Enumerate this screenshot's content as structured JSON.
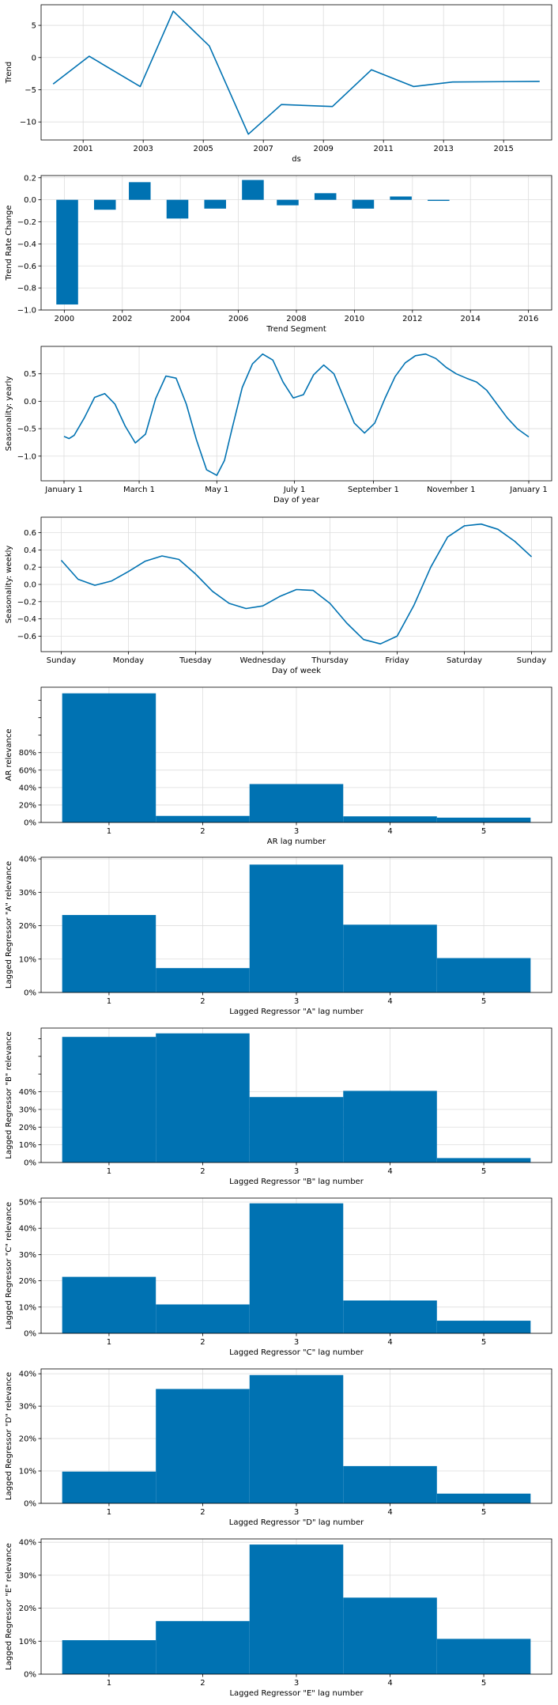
{
  "figure": {
    "color": "#0072b2",
    "grid_color": "#dddddd"
  },
  "chart_data": [
    {
      "type": "line",
      "xlabel": "ds",
      "ylabel": "Trend",
      "x_ticks": [
        "2001",
        "2003",
        "2005",
        "2007",
        "2009",
        "2011",
        "2013",
        "2015"
      ],
      "x_tick_values": [
        2001,
        2003,
        2005,
        2007,
        2009,
        2011,
        2013,
        2015
      ],
      "y_ticks": [
        "5",
        "0",
        "−5",
        "−10"
      ],
      "y_tick_values": [
        5,
        0,
        -5,
        -10
      ],
      "xlim": [
        1999.6,
        2016.6
      ],
      "ylim": [
        -12.8,
        8.2
      ],
      "grid": true,
      "series": [
        {
          "x": [
            2000.0,
            2001.2,
            2002.9,
            2004.0,
            2005.2,
            2006.5,
            2007.6,
            2009.3,
            2010.6,
            2012.0,
            2013.3,
            2016.2
          ],
          "values": [
            -4.1,
            0.2,
            -4.5,
            7.2,
            1.8,
            -11.9,
            -7.3,
            -7.6,
            -1.9,
            -4.5,
            -3.8,
            -3.7
          ]
        }
      ]
    },
    {
      "type": "bar",
      "xlabel": "Trend Segment",
      "ylabel": "Trend Rate Change",
      "x_ticks": [
        "2000",
        "2002",
        "2004",
        "2006",
        "2008",
        "2010",
        "2012",
        "2014",
        "2016"
      ],
      "x_tick_values": [
        2000,
        2002,
        2004,
        2006,
        2008,
        2010,
        2012,
        2014,
        2016
      ],
      "y_ticks": [
        "0.2",
        "0.0",
        "−0.2",
        "−0.4",
        "−0.6",
        "−0.8",
        "−1.0"
      ],
      "y_tick_values": [
        0.2,
        0.0,
        -0.2,
        -0.4,
        -0.6,
        -0.8,
        -1.0
      ],
      "xlim": [
        1999.2,
        2016.8
      ],
      "ylim": [
        -1.0,
        0.22
      ],
      "bar_width": 0.75,
      "grid": true,
      "x": [
        2000.1,
        2001.4,
        2002.6,
        2003.9,
        2005.2,
        2006.5,
        2007.7,
        2009.0,
        2010.3,
        2011.6,
        2012.9
      ],
      "values": [
        -0.95,
        -0.09,
        0.16,
        -0.17,
        -0.08,
        0.18,
        -0.05,
        0.06,
        -0.08,
        0.03,
        -0.01
      ]
    },
    {
      "type": "line",
      "xlabel": "Day of year",
      "ylabel": "Seasonality: yearly",
      "x_ticks": [
        "January 1",
        "March 1",
        "May 1",
        "July 1",
        "September 1",
        "November 1",
        "January 1"
      ],
      "x_tick_values": [
        0,
        59,
        120,
        181,
        243,
        304,
        365
      ],
      "y_ticks": [
        "0.5",
        "0.0",
        "−0.5",
        "−1.0"
      ],
      "y_tick_values": [
        0.5,
        0.0,
        -0.5,
        -1.0
      ],
      "xlim": [
        -18,
        383
      ],
      "ylim": [
        -1.45,
        1.0
      ],
      "grid": true,
      "series": [
        {
          "x": [
            0,
            4,
            8,
            16,
            24,
            32,
            40,
            48,
            56,
            64,
            72,
            80,
            88,
            96,
            104,
            112,
            120,
            126,
            132,
            140,
            148,
            156,
            164,
            172,
            180,
            188,
            196,
            204,
            212,
            220,
            228,
            236,
            244,
            252,
            260,
            268,
            276,
            284,
            292,
            300,
            308,
            316,
            324,
            332,
            340,
            348,
            356,
            365
          ],
          "values": [
            -0.64,
            -0.68,
            -0.62,
            -0.3,
            0.07,
            0.14,
            -0.05,
            -0.45,
            -0.76,
            -0.6,
            0.05,
            0.46,
            0.42,
            -0.05,
            -0.7,
            -1.25,
            -1.35,
            -1.08,
            -0.5,
            0.25,
            0.68,
            0.86,
            0.75,
            0.35,
            0.06,
            0.12,
            0.48,
            0.66,
            0.5,
            0.05,
            -0.4,
            -0.58,
            -0.4,
            0.05,
            0.45,
            0.7,
            0.83,
            0.86,
            0.78,
            0.62,
            0.5,
            0.42,
            0.35,
            0.2,
            -0.05,
            -0.3,
            -0.5,
            -0.65
          ]
        }
      ]
    },
    {
      "type": "line",
      "xlabel": "Day of week",
      "ylabel": "Seasonality: weekly",
      "x_ticks": [
        "Sunday",
        "Monday",
        "Tuesday",
        "Wednesday",
        "Thursday",
        "Friday",
        "Saturday",
        "Sunday"
      ],
      "x_tick_values": [
        0,
        1,
        2,
        3,
        4,
        5,
        6,
        7
      ],
      "y_ticks": [
        "0.6",
        "0.4",
        "0.2",
        "0.0",
        "−0.2",
        "−0.4",
        "−0.6"
      ],
      "y_tick_values": [
        0.6,
        0.4,
        0.2,
        0.0,
        -0.2,
        -0.4,
        -0.6
      ],
      "xlim": [
        -0.3,
        7.3
      ],
      "ylim": [
        -0.78,
        0.78
      ],
      "grid": true,
      "series": [
        {
          "x": [
            0,
            0.25,
            0.5,
            0.75,
            1.0,
            1.25,
            1.5,
            1.75,
            2.0,
            2.25,
            2.5,
            2.75,
            3.0,
            3.25,
            3.5,
            3.75,
            4.0,
            4.25,
            4.5,
            4.75,
            5.0,
            5.25,
            5.5,
            5.75,
            6.0,
            6.25,
            6.5,
            6.75,
            7.0
          ],
          "values": [
            0.28,
            0.06,
            -0.01,
            0.04,
            0.15,
            0.27,
            0.33,
            0.29,
            0.12,
            -0.08,
            -0.22,
            -0.28,
            -0.25,
            -0.14,
            -0.06,
            -0.07,
            -0.22,
            -0.45,
            -0.64,
            -0.69,
            -0.6,
            -0.24,
            0.2,
            0.55,
            0.68,
            0.7,
            0.64,
            0.5,
            0.32
          ]
        }
      ]
    },
    {
      "type": "bar",
      "xlabel": "AR lag number",
      "ylabel": "AR relevance",
      "categories": [
        "1",
        "2",
        "3",
        "4",
        "5"
      ],
      "values": [
        1.48,
        0.075,
        0.44,
        0.07,
        0.055
      ],
      "y_ticks": [
        "0%",
        "20%",
        "40%",
        "60%",
        "80%"
      ],
      "y_tick_values": [
        0,
        0.2,
        0.4,
        0.6,
        0.8
      ],
      "y_minor_ticks": [
        1.0,
        1.2,
        1.4
      ],
      "ylim": [
        0,
        1.55
      ],
      "grid": true
    },
    {
      "type": "bar",
      "xlabel": "Lagged Regressor \"A\" lag number",
      "ylabel": "Lagged Regressor \"A\" relevance",
      "categories": [
        "1",
        "2",
        "3",
        "4",
        "5"
      ],
      "values": [
        0.232,
        0.073,
        0.383,
        0.203,
        0.103
      ],
      "y_ticks": [
        "0%",
        "10%",
        "20%",
        "30%",
        "40%"
      ],
      "y_tick_values": [
        0,
        0.1,
        0.2,
        0.3,
        0.4
      ],
      "ylim": [
        0,
        0.405
      ],
      "grid": true
    },
    {
      "type": "bar",
      "xlabel": "Lagged Regressor \"B\" lag number",
      "ylabel": "Lagged Regressor \"B\" relevance",
      "categories": [
        "1",
        "2",
        "3",
        "4",
        "5"
      ],
      "values": [
        0.71,
        0.73,
        0.37,
        0.405,
        0.025
      ],
      "y_ticks": [
        "0%",
        "10%",
        "20%",
        "30%",
        "40%"
      ],
      "y_tick_values": [
        0,
        0.1,
        0.2,
        0.3,
        0.4
      ],
      "y_minor_ticks": [
        0.5,
        0.6,
        0.7
      ],
      "ylim": [
        0,
        0.76
      ],
      "grid": true
    },
    {
      "type": "bar",
      "xlabel": "Lagged Regressor \"C\" lag number",
      "ylabel": "Lagged Regressor \"C\" relevance",
      "categories": [
        "1",
        "2",
        "3",
        "4",
        "5"
      ],
      "values": [
        0.215,
        0.11,
        0.495,
        0.125,
        0.048
      ],
      "y_ticks": [
        "0%",
        "10%",
        "20%",
        "30%",
        "40%",
        "50%"
      ],
      "y_tick_values": [
        0,
        0.1,
        0.2,
        0.3,
        0.4,
        0.5
      ],
      "ylim": [
        0,
        0.515
      ],
      "grid": true
    },
    {
      "type": "bar",
      "xlabel": "Lagged Regressor \"D\" lag number",
      "ylabel": "Lagged Regressor \"D\" relevance",
      "categories": [
        "1",
        "2",
        "3",
        "4",
        "5"
      ],
      "values": [
        0.098,
        0.353,
        0.396,
        0.115,
        0.03
      ],
      "y_ticks": [
        "0%",
        "10%",
        "20%",
        "30%",
        "40%"
      ],
      "y_tick_values": [
        0,
        0.1,
        0.2,
        0.3,
        0.4
      ],
      "ylim": [
        0,
        0.415
      ],
      "grid": true
    },
    {
      "type": "bar",
      "xlabel": "Lagged Regressor \"E\" lag number",
      "ylabel": "Lagged Regressor \"E\" relevance",
      "categories": [
        "1",
        "2",
        "3",
        "4",
        "5"
      ],
      "values": [
        0.103,
        0.161,
        0.393,
        0.232,
        0.107
      ],
      "y_ticks": [
        "0%",
        "10%",
        "20%",
        "30%",
        "40%"
      ],
      "y_tick_values": [
        0,
        0.1,
        0.2,
        0.3,
        0.4
      ],
      "ylim": [
        0,
        0.41
      ],
      "grid": true
    }
  ]
}
